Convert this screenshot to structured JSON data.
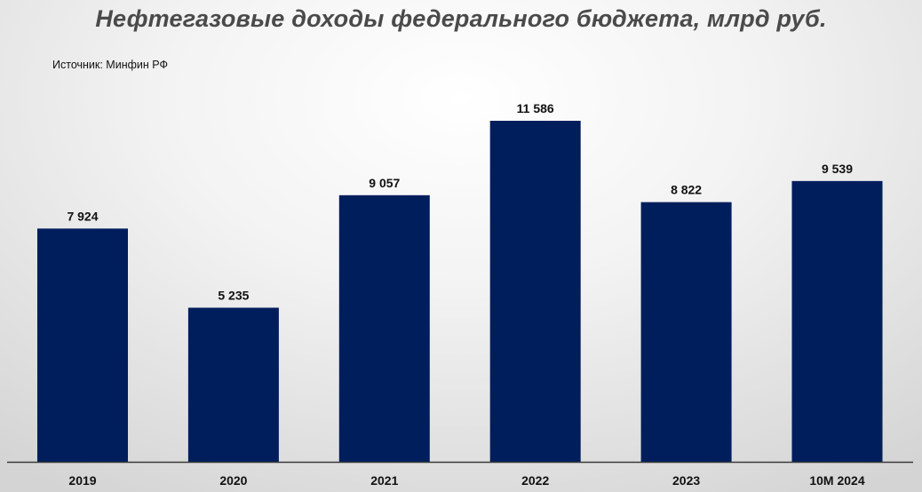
{
  "chart_data": {
    "type": "bar",
    "title": "Нефтегазовые доходы федерального бюджета, млрд руб.",
    "source": "Источник: Минфин РФ",
    "categories": [
      "2019",
      "2020",
      "2021",
      "2022",
      "2023",
      "10M 2024"
    ],
    "values": [
      7924,
      5235,
      9057,
      11586,
      8822,
      9539
    ],
    "value_labels": [
      "7 924",
      "5 235",
      "9 057",
      "11 586",
      "8 822",
      "9 539"
    ],
    "xlabel": "",
    "ylabel": "",
    "ylim": [
      0,
      12500
    ],
    "grid": false,
    "legend": "none",
    "colors": {
      "bar": "#001e5c",
      "axis": "#3a3a3a",
      "title": "#4a4a4a",
      "label": "#111111"
    }
  }
}
